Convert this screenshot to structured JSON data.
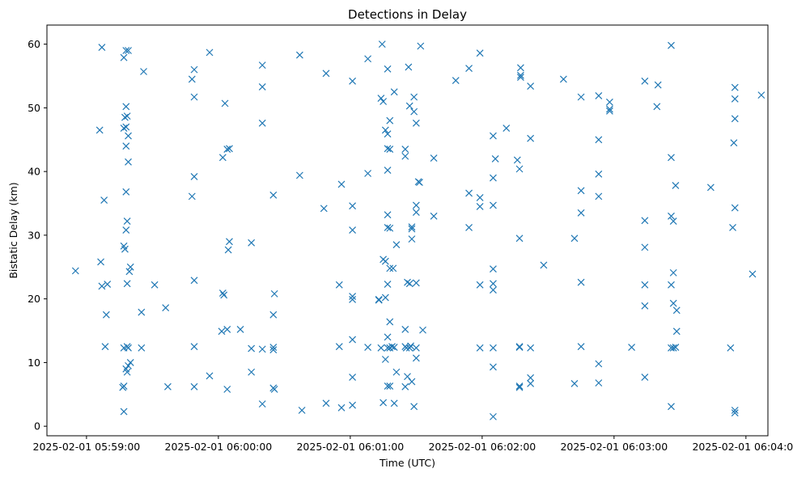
{
  "chart_data": {
    "type": "scatter",
    "title": "Detections in Delay",
    "xlabel": "Time (UTC)",
    "ylabel": "Bistatic Delay (km)",
    "marker": "x",
    "color": "#1f77b4",
    "x_unit": "seconds since 2025-02-01 05:59:00",
    "xlim": [
      -18,
      310
    ],
    "ylim": [
      -1.5,
      63
    ],
    "x_ticks": [
      {
        "value": 0,
        "label": "2025-02-01 05:59:00"
      },
      {
        "value": 60,
        "label": "2025-02-01 06:00:00"
      },
      {
        "value": 120,
        "label": "2025-02-01 06:01:00"
      },
      {
        "value": 180,
        "label": "2025-02-01 06:02:00"
      },
      {
        "value": 240,
        "label": "2025-02-01 06:03:00"
      },
      {
        "value": 300,
        "label": "2025-02-01 06:04:00"
      }
    ],
    "y_ticks": [
      {
        "value": 0,
        "label": "0"
      },
      {
        "value": 10,
        "label": "10"
      },
      {
        "value": 20,
        "label": "20"
      },
      {
        "value": 30,
        "label": "30"
      },
      {
        "value": 40,
        "label": "40"
      },
      {
        "value": 50,
        "label": "50"
      },
      {
        "value": 60,
        "label": "60"
      }
    ],
    "points": [
      [
        -5,
        24.4
      ],
      [
        6,
        46.5
      ],
      [
        7,
        59.5
      ],
      [
        6.5,
        25.8
      ],
      [
        7,
        22
      ],
      [
        8,
        35.5
      ],
      [
        9,
        17.5
      ],
      [
        8.5,
        12.5
      ],
      [
        9.5,
        22.3
      ],
      [
        18,
        59
      ],
      [
        19,
        59
      ],
      [
        17,
        57.9
      ],
      [
        17.5,
        48.5
      ],
      [
        18,
        50.2
      ],
      [
        18,
        47
      ],
      [
        17,
        46.8
      ],
      [
        18.5,
        48.7
      ],
      [
        19,
        45.6
      ],
      [
        18,
        44
      ],
      [
        19,
        41.5
      ],
      [
        18,
        36.8
      ],
      [
        18.5,
        32.2
      ],
      [
        18,
        30.8
      ],
      [
        17,
        28.3
      ],
      [
        17.5,
        27.8
      ],
      [
        19.5,
        24.3
      ],
      [
        20,
        25
      ],
      [
        18.5,
        22.4
      ],
      [
        17,
        12.3
      ],
      [
        18.5,
        12.5
      ],
      [
        19,
        12.3
      ],
      [
        18,
        9
      ],
      [
        18.5,
        8.5
      ],
      [
        19,
        9.5
      ],
      [
        20,
        10
      ],
      [
        17,
        6.3
      ],
      [
        16.5,
        6.1
      ],
      [
        17,
        2.3
      ],
      [
        26,
        55.7
      ],
      [
        25,
        17.9
      ],
      [
        25,
        12.3
      ],
      [
        31,
        22.2
      ],
      [
        36,
        18.6
      ],
      [
        37,
        6.2
      ],
      [
        49,
        56
      ],
      [
        48,
        54.5
      ],
      [
        49,
        51.7
      ],
      [
        49,
        39.2
      ],
      [
        48,
        36.1
      ],
      [
        49,
        22.9
      ],
      [
        49,
        12.5
      ],
      [
        49,
        6.2
      ],
      [
        56,
        7.9
      ],
      [
        56,
        58.7
      ],
      [
        62,
        42.2
      ],
      [
        63,
        50.7
      ],
      [
        65,
        43.6
      ],
      [
        64,
        43.5
      ],
      [
        65,
        29
      ],
      [
        64.5,
        27.7
      ],
      [
        62,
        20.9
      ],
      [
        62.5,
        20.6
      ],
      [
        61.5,
        14.9
      ],
      [
        64,
        15.2
      ],
      [
        64,
        5.8
      ],
      [
        70,
        15.2
      ],
      [
        75,
        28.8
      ],
      [
        75,
        12.2
      ],
      [
        75,
        8.5
      ],
      [
        80,
        56.7
      ],
      [
        80,
        53.3
      ],
      [
        80,
        47.6
      ],
      [
        80,
        12.1
      ],
      [
        80,
        3.5
      ],
      [
        85,
        36.3
      ],
      [
        85,
        17.5
      ],
      [
        85,
        12.4
      ],
      [
        85,
        12
      ],
      [
        85.5,
        20.8
      ],
      [
        85,
        6
      ],
      [
        85.5,
        5.8
      ],
      [
        97,
        58.3
      ],
      [
        97,
        39.4
      ],
      [
        98,
        2.5
      ],
      [
        108,
        34.2
      ],
      [
        109,
        55.4
      ],
      [
        109,
        3.6
      ],
      [
        115,
        22.2
      ],
      [
        115,
        12.5
      ],
      [
        116,
        2.9
      ],
      [
        116,
        38
      ],
      [
        121,
        54.2
      ],
      [
        121,
        34.6
      ],
      [
        121,
        30.8
      ],
      [
        121,
        20.4
      ],
      [
        121,
        19.9
      ],
      [
        121,
        13.6
      ],
      [
        121,
        7.7
      ],
      [
        121,
        3.3
      ],
      [
        128,
        12.4
      ],
      [
        128,
        39.7
      ],
      [
        128,
        57.7
      ],
      [
        133,
        19.9
      ],
      [
        133,
        19.8
      ],
      [
        134,
        12.3
      ],
      [
        134.5,
        60
      ],
      [
        134,
        51.5
      ],
      [
        135,
        51
      ],
      [
        135,
        3.7
      ],
      [
        135,
        26.2
      ],
      [
        136,
        46.5
      ],
      [
        136,
        25.9
      ],
      [
        136,
        20.2
      ],
      [
        136,
        10.5
      ],
      [
        137,
        12.3
      ],
      [
        137,
        56.1
      ],
      [
        137,
        45.9
      ],
      [
        137,
        43.6
      ],
      [
        137,
        40.2
      ],
      [
        137,
        33.2
      ],
      [
        137,
        31.2
      ],
      [
        137,
        22.3
      ],
      [
        137,
        14
      ],
      [
        137,
        6.3
      ],
      [
        138,
        48
      ],
      [
        138,
        43.5
      ],
      [
        138,
        31.1
      ],
      [
        138,
        24.8
      ],
      [
        138,
        16.4
      ],
      [
        138,
        12.3
      ],
      [
        138,
        6.3
      ],
      [
        139,
        12.5
      ],
      [
        139.5,
        24.8
      ],
      [
        140,
        52.5
      ],
      [
        140,
        3.6
      ],
      [
        140,
        12.4
      ],
      [
        141,
        28.5
      ],
      [
        141,
        8.5
      ],
      [
        145,
        43.5
      ],
      [
        145,
        42.4
      ],
      [
        145,
        15.2
      ],
      [
        145,
        12.5
      ],
      [
        145.5,
        12.3
      ],
      [
        145,
        6.2
      ],
      [
        146,
        22.6
      ],
      [
        146,
        7.8
      ],
      [
        146.5,
        56.4
      ],
      [
        147,
        50.3
      ],
      [
        147,
        22.4
      ],
      [
        147,
        12.3
      ],
      [
        147.5,
        12.6
      ],
      [
        148,
        31.3
      ],
      [
        148,
        31
      ],
      [
        148,
        29.4
      ],
      [
        148,
        7
      ],
      [
        149,
        51.7
      ],
      [
        149,
        49.4
      ],
      [
        149,
        3.1
      ],
      [
        150,
        47.6
      ],
      [
        150,
        34.7
      ],
      [
        150,
        33.6
      ],
      [
        150,
        22.5
      ],
      [
        150,
        12.3
      ],
      [
        150,
        10.7
      ],
      [
        151,
        38.4
      ],
      [
        151.5,
        38.3
      ],
      [
        152,
        59.7
      ],
      [
        153,
        15.1
      ],
      [
        158,
        42.1
      ],
      [
        158,
        33
      ],
      [
        168,
        54.3
      ],
      [
        174,
        56.2
      ],
      [
        174,
        36.6
      ],
      [
        174,
        31.2
      ],
      [
        179,
        58.6
      ],
      [
        179,
        35.9
      ],
      [
        179,
        34.5
      ],
      [
        179,
        22.2
      ],
      [
        179,
        12.3
      ],
      [
        185,
        45.6
      ],
      [
        185,
        39
      ],
      [
        185,
        34.7
      ],
      [
        185,
        24.7
      ],
      [
        185,
        22.4
      ],
      [
        185,
        21.4
      ],
      [
        185,
        12.3
      ],
      [
        185,
        9.3
      ],
      [
        185,
        1.5
      ],
      [
        186,
        42
      ],
      [
        191,
        46.8
      ],
      [
        196,
        41.8
      ],
      [
        197,
        40.4
      ],
      [
        197,
        29.5
      ],
      [
        197,
        12.5
      ],
      [
        197,
        12.4
      ],
      [
        197,
        6.3
      ],
      [
        197,
        6.1
      ],
      [
        197.5,
        56.3
      ],
      [
        197.5,
        55.1
      ],
      [
        197.5,
        54.8
      ],
      [
        202,
        53.4
      ],
      [
        202,
        45.2
      ],
      [
        202,
        12.3
      ],
      [
        202,
        7.6
      ],
      [
        202,
        6.7
      ],
      [
        208,
        25.3
      ],
      [
        217,
        54.5
      ],
      [
        222,
        29.5
      ],
      [
        222,
        6.7
      ],
      [
        225,
        51.7
      ],
      [
        225,
        37
      ],
      [
        225,
        33.5
      ],
      [
        225,
        22.6
      ],
      [
        225,
        12.5
      ],
      [
        233,
        51.9
      ],
      [
        233,
        45
      ],
      [
        233,
        39.6
      ],
      [
        233,
        36.1
      ],
      [
        233,
        9.8
      ],
      [
        233,
        6.8
      ],
      [
        238,
        50.9
      ],
      [
        238,
        49.8
      ],
      [
        238,
        49.5
      ],
      [
        248,
        12.4
      ],
      [
        254,
        54.2
      ],
      [
        254,
        32.3
      ],
      [
        254,
        28.1
      ],
      [
        254,
        22.2
      ],
      [
        254,
        18.9
      ],
      [
        254,
        7.7
      ],
      [
        260,
        53.6
      ],
      [
        259.5,
        50.2
      ],
      [
        266,
        59.8
      ],
      [
        266,
        42.2
      ],
      [
        266,
        33
      ],
      [
        266,
        22.2
      ],
      [
        266,
        12.3
      ],
      [
        266,
        3.1
      ],
      [
        267,
        32.2
      ],
      [
        267,
        24.1
      ],
      [
        267,
        19.3
      ],
      [
        267,
        12.3
      ],
      [
        268,
        37.8
      ],
      [
        268,
        12.4
      ],
      [
        268.5,
        18.2
      ],
      [
        268.5,
        14.9
      ],
      [
        284,
        37.5
      ],
      [
        294,
        31.2
      ],
      [
        293,
        12.3
      ],
      [
        295,
        53.2
      ],
      [
        295,
        51.4
      ],
      [
        295,
        48.3
      ],
      [
        294.5,
        44.5
      ],
      [
        295,
        34.3
      ],
      [
        295,
        2.5
      ],
      [
        295,
        2.1
      ],
      [
        303,
        23.9
      ],
      [
        307,
        52
      ]
    ]
  }
}
